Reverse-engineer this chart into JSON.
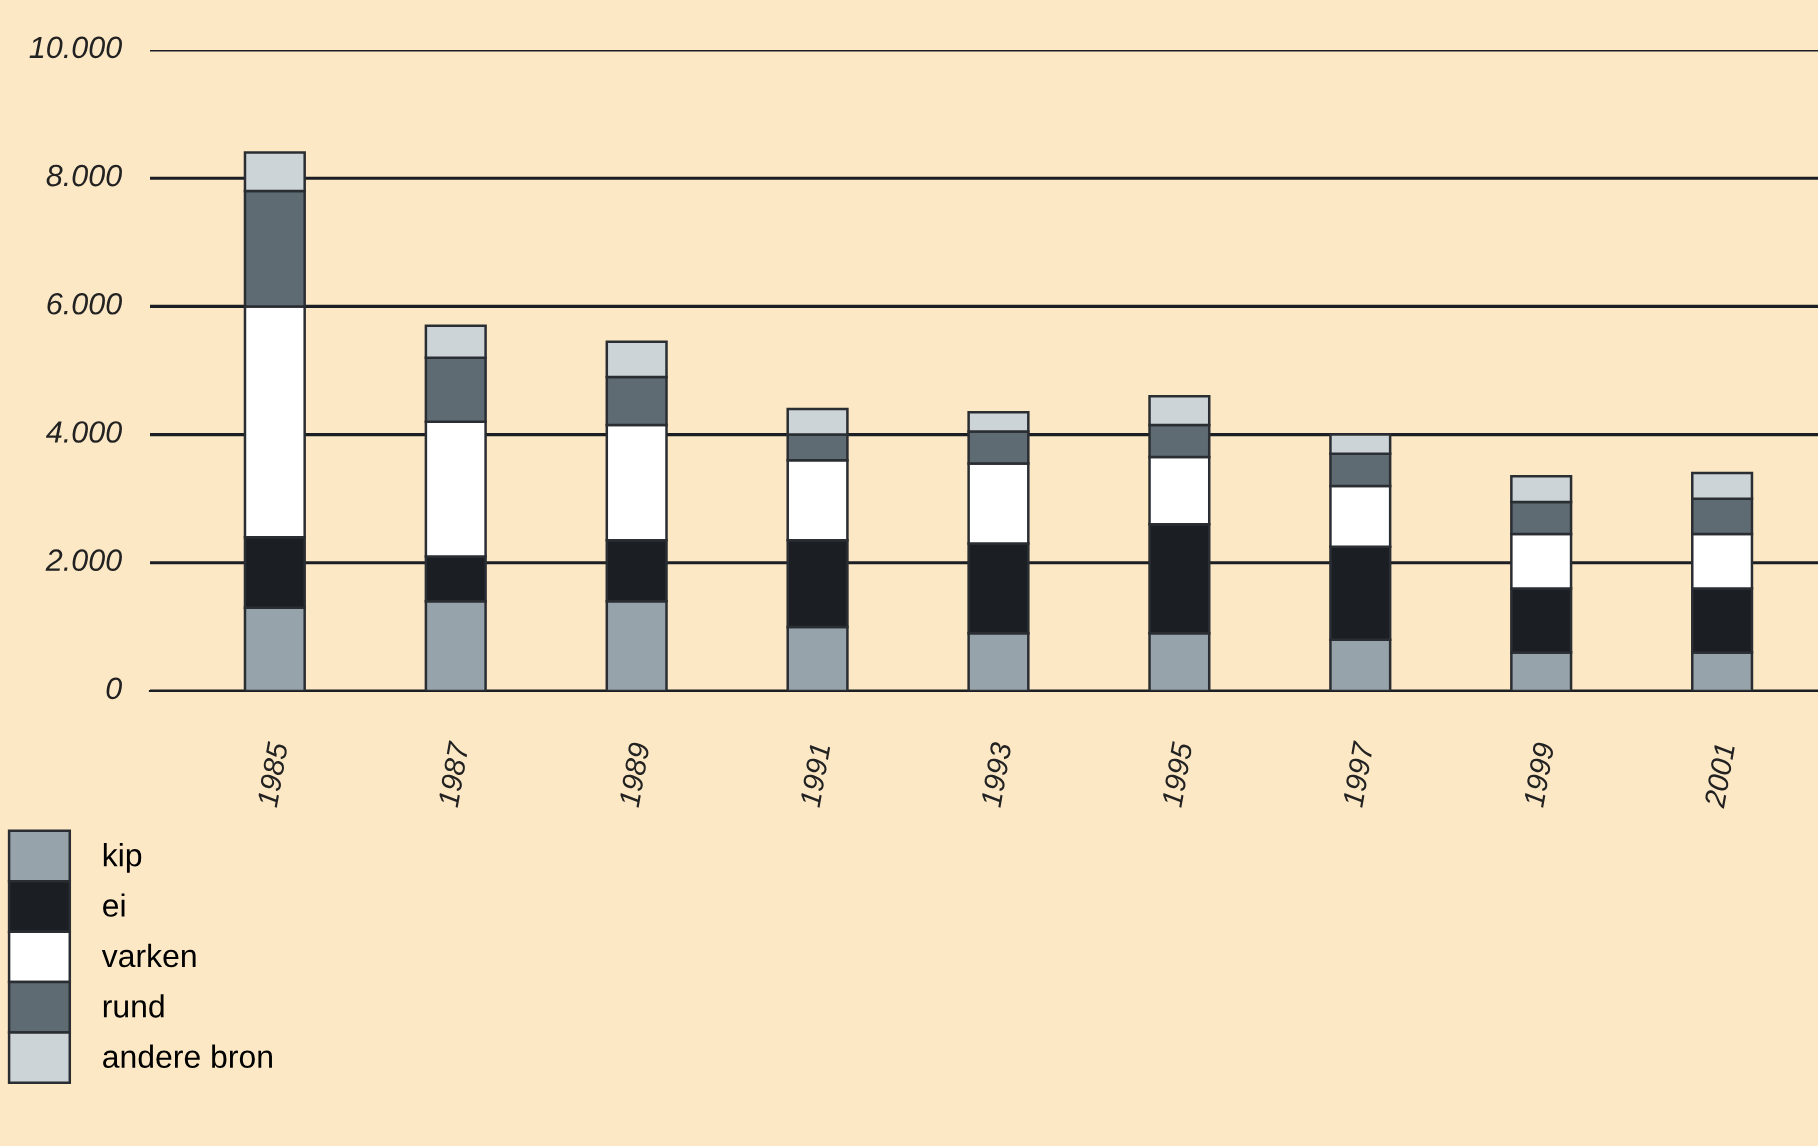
{
  "chart_data": {
    "type": "bar",
    "stacked": true,
    "categories": [
      "1985",
      "1987",
      "1989",
      "1991",
      "1993",
      "1995",
      "1997",
      "1999",
      "2001"
    ],
    "series": [
      {
        "name": "kip",
        "color": "#97a3aa",
        "values": [
          1300,
          1400,
          1400,
          1000,
          900,
          900,
          800,
          600,
          600
        ]
      },
      {
        "name": "ei",
        "color": "#1b1f24",
        "values": [
          1100,
          700,
          950,
          1350,
          1400,
          1700,
          1450,
          1000,
          1000
        ]
      },
      {
        "name": "varken",
        "color": "#ffffff",
        "values": [
          3600,
          2100,
          1800,
          1250,
          1250,
          1050,
          950,
          850,
          850
        ]
      },
      {
        "name": "rund",
        "color": "#5f6b72",
        "values": [
          1800,
          1000,
          750,
          400,
          500,
          500,
          500,
          500,
          550
        ]
      },
      {
        "name": "andere bron",
        "color": "#ccd4d8",
        "values": [
          600,
          500,
          550,
          400,
          300,
          450,
          300,
          400,
          400
        ]
      }
    ],
    "ylim": [
      0,
      10000
    ],
    "yticks": [
      0,
      {
        "value": 2000,
        "label": "2.000"
      },
      {
        "value": 4000,
        "label": "4.000"
      },
      {
        "value": 6000,
        "label": "6.000"
      },
      {
        "value": 8000,
        "label": "8.000"
      },
      {
        "value": 10000,
        "label": "10.000"
      }
    ],
    "grid": "y",
    "legend": "bottom left"
  }
}
